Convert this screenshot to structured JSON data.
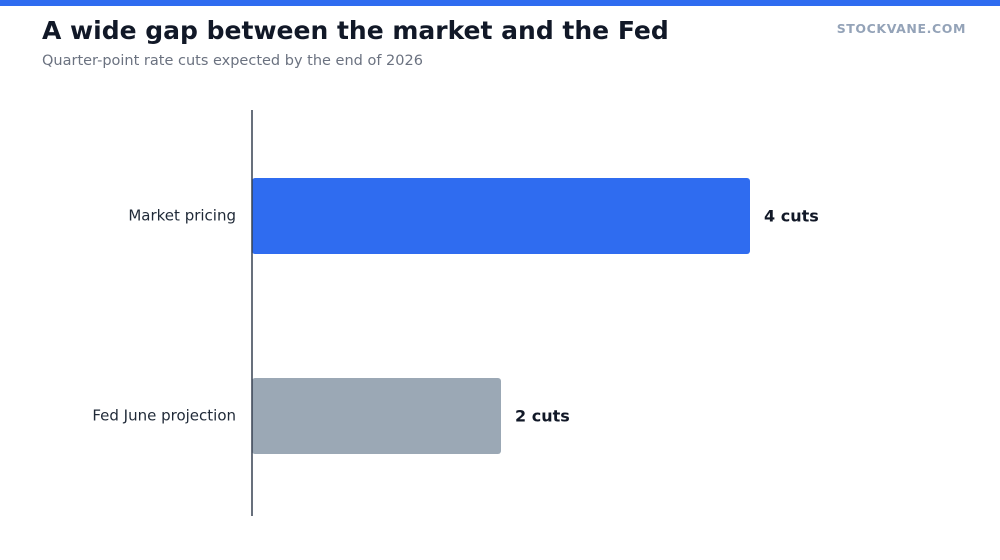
{
  "header": {
    "title": "A wide gap between the market and the Fed",
    "subtitle": "Quarter-point rate cuts expected by the end of 2026",
    "brand": "STOCKVANE.COM"
  },
  "colors": {
    "accent": "#2f6cf0",
    "muted_bar": "#9ba8b5",
    "axis": "#374151"
  },
  "chart_data": {
    "type": "bar",
    "orientation": "horizontal",
    "title": "A wide gap between the market and the Fed",
    "subtitle": "Quarter-point rate cuts expected by the end of 2026",
    "categories": [
      "Market pricing",
      "Fed June projection"
    ],
    "values": [
      4,
      2
    ],
    "value_labels": [
      "4 cuts",
      "2 cuts"
    ],
    "bar_colors": [
      "#2f6cf0",
      "#9ba8b5"
    ],
    "xlabel": "",
    "ylabel": "",
    "xlim": [
      0,
      4
    ],
    "grid": false
  }
}
